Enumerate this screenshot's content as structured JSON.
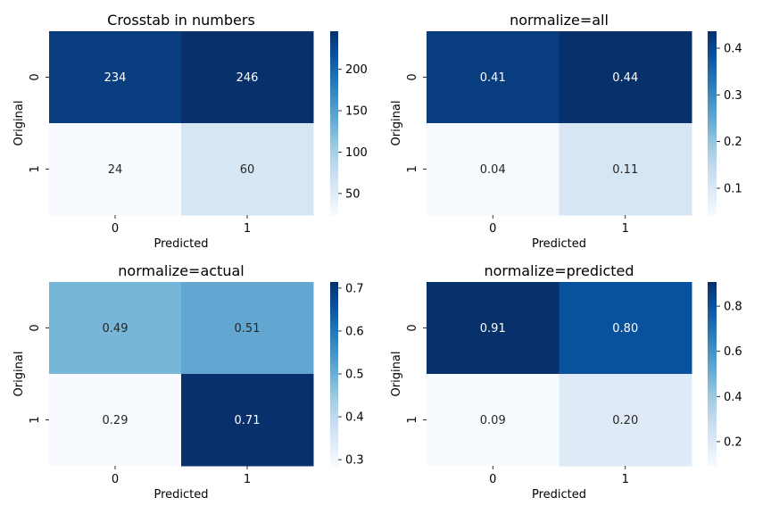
{
  "chart_data": [
    {
      "type": "heatmap",
      "title": "Crosstab in numbers",
      "xlabel": "Predicted",
      "ylabel": "Original",
      "x_categories": [
        "0",
        "1"
      ],
      "y_categories": [
        "0",
        "1"
      ],
      "values": [
        [
          234,
          246
        ],
        [
          24,
          60
        ]
      ],
      "annotations": [
        [
          "234",
          "246"
        ],
        [
          "24",
          "60"
        ]
      ],
      "colormap": "Blues",
      "color_range": [
        24,
        246
      ],
      "colorbar_ticks": [
        50,
        100,
        150,
        200
      ],
      "colorbar_tick_labels": [
        "50",
        "100",
        "150",
        "200"
      ]
    },
    {
      "type": "heatmap",
      "title": "normalize=all",
      "xlabel": "Predicted",
      "ylabel": "Original",
      "x_categories": [
        "0",
        "1"
      ],
      "y_categories": [
        "0",
        "1"
      ],
      "values": [
        [
          0.4149,
          0.4362
        ],
        [
          0.0426,
          0.1064
        ]
      ],
      "annotations": [
        [
          "0.41",
          "0.44"
        ],
        [
          "0.04",
          "0.11"
        ]
      ],
      "colormap": "Blues",
      "color_range": [
        0.0426,
        0.4362
      ],
      "colorbar_ticks": [
        0.1,
        0.2,
        0.3,
        0.4
      ],
      "colorbar_tick_labels": [
        "0.1",
        "0.2",
        "0.3",
        "0.4"
      ]
    },
    {
      "type": "heatmap",
      "title": "normalize=actual",
      "xlabel": "Predicted",
      "ylabel": "Original",
      "x_categories": [
        "0",
        "1"
      ],
      "y_categories": [
        "0",
        "1"
      ],
      "values": [
        [
          0.4875,
          0.5125
        ],
        [
          0.2857,
          0.7143
        ]
      ],
      "annotations": [
        [
          "0.49",
          "0.51"
        ],
        [
          "0.29",
          "0.71"
        ]
      ],
      "colormap": "Blues",
      "color_range": [
        0.2857,
        0.7143
      ],
      "colorbar_ticks": [
        0.3,
        0.4,
        0.5,
        0.6,
        0.7
      ],
      "colorbar_tick_labels": [
        "0.3",
        "0.4",
        "0.5",
        "0.6",
        "0.7"
      ]
    },
    {
      "type": "heatmap",
      "title": "normalize=predicted",
      "xlabel": "Predicted",
      "ylabel": "Original",
      "x_categories": [
        "0",
        "1"
      ],
      "y_categories": [
        "0",
        "1"
      ],
      "values": [
        [
          0.907,
          0.8039
        ],
        [
          0.093,
          0.1961
        ]
      ],
      "annotations": [
        [
          "0.91",
          "0.80"
        ],
        [
          "0.09",
          "0.20"
        ]
      ],
      "colormap": "Blues",
      "color_range": [
        0.093,
        0.907
      ],
      "colorbar_ticks": [
        0.2,
        0.4,
        0.6,
        0.8
      ],
      "colorbar_tick_labels": [
        "0.2",
        "0.4",
        "0.6",
        "0.8"
      ]
    }
  ],
  "colors": {
    "text_dark": "#262626",
    "text_light": "#ffffff",
    "axis": "#000000",
    "blues_scale": [
      "#f7fbff",
      "#deebf7",
      "#c6dbef",
      "#9ecae1",
      "#6baed6",
      "#4292c6",
      "#2171b5",
      "#08519c",
      "#08306b"
    ]
  }
}
